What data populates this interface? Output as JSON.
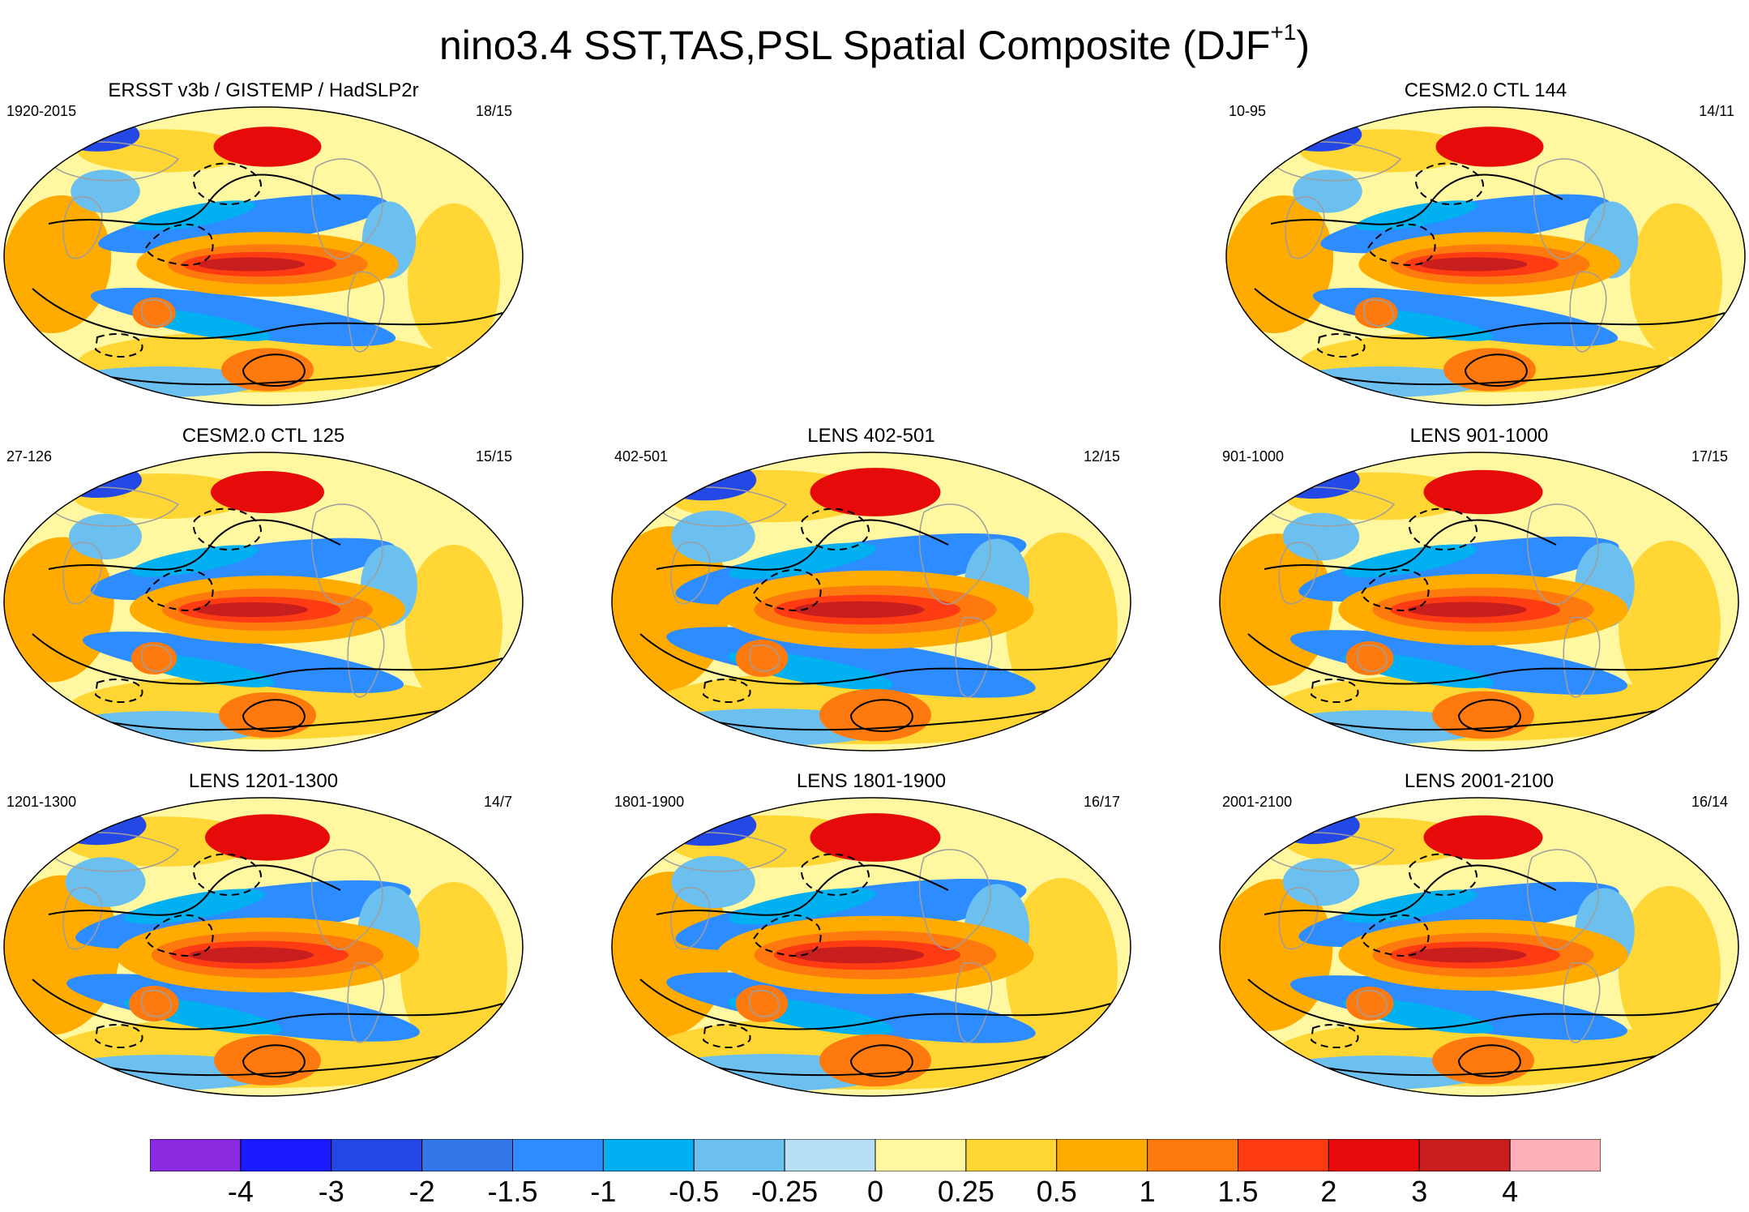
{
  "figure": {
    "title": "nino3.4 SST,TAS,PSL Spatial Composite (DJF",
    "title_superscript": "+1",
    "title_suffix": ")"
  },
  "panels": [
    {
      "key": "obs",
      "title": "ERSST v3b / GISTEMP / HadSLP2r",
      "years": "1920-2015",
      "counts": "18/15",
      "strength": 0.95
    },
    {
      "key": "cesm144",
      "title": "CESM2.0 CTL 144",
      "years": "10-95",
      "counts": "14/11",
      "strength": 0.95
    },
    {
      "key": "cesm125",
      "title": "CESM2.0 CTL 125",
      "years": "27-126",
      "counts": "15/15",
      "strength": 1.0
    },
    {
      "key": "lens402",
      "title": "LENS 402-501",
      "years": "402-501",
      "counts": "12/15",
      "strength": 1.15
    },
    {
      "key": "lens901",
      "title": "LENS 901-1000",
      "years": "901-1000",
      "counts": "17/15",
      "strength": 1.05
    },
    {
      "key": "lens1201",
      "title": "LENS 1201-1300",
      "years": "1201-1300",
      "counts": "14/7",
      "strength": 1.1
    },
    {
      "key": "lens1801",
      "title": "LENS 1801-1900",
      "years": "1801-1900",
      "counts": "16/17",
      "strength": 1.15
    },
    {
      "key": "lens2001",
      "title": "LENS 2001-2100",
      "years": "2001-2100",
      "counts": "16/14",
      "strength": 1.05
    }
  ],
  "colorbar": {
    "colors": [
      "#8a2be2",
      "#1a1aff",
      "#2448e6",
      "#3377e8",
      "#2d8cff",
      "#00b0f0",
      "#6cc0ef",
      "#b8e0f5",
      "#fff8a0",
      "#ffd633",
      "#ffab00",
      "#ff7a0e",
      "#ff3b14",
      "#e60a0a",
      "#c81e1e",
      "#ffb0b8"
    ],
    "labels": [
      "-4",
      "-3",
      "-2",
      "-1.5",
      "-1",
      "-0.5",
      "-0.25",
      "0",
      "0.25",
      "0.5",
      "1",
      "1.5",
      "2",
      "3",
      "4"
    ]
  }
}
